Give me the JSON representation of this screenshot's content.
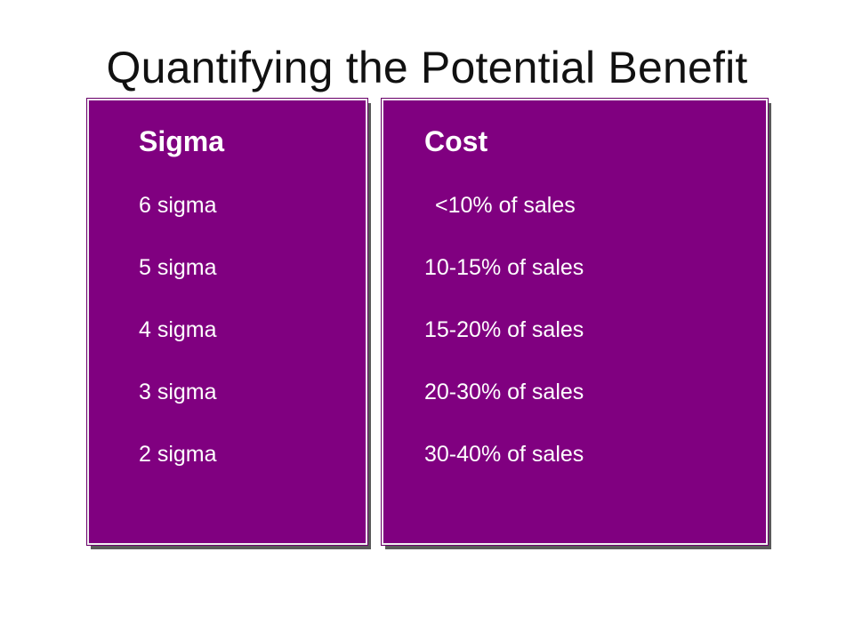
{
  "slide": {
    "title": "Quantifying the Potential Benefit",
    "panel_fill_color": "#800080"
  },
  "table": {
    "sigma_header": "Sigma",
    "cost_header": "Cost",
    "rows": [
      {
        "sigma": "6 sigma",
        "cost": "<10% of sales"
      },
      {
        "sigma": "5 sigma",
        "cost": "10-15% of sales"
      },
      {
        "sigma": "4 sigma",
        "cost": "15-20% of sales"
      },
      {
        "sigma": "3 sigma",
        "cost": "20-30% of sales"
      },
      {
        "sigma": "2 sigma",
        "cost": "30-40% of sales"
      }
    ]
  }
}
